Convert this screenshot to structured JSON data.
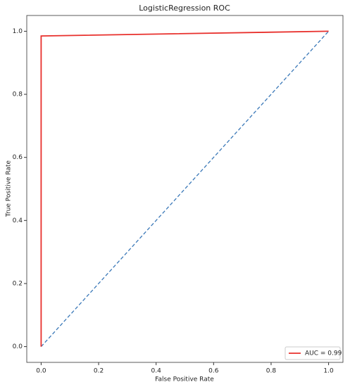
{
  "chart_data": {
    "type": "line",
    "title": "LogisticRegression ROC",
    "xlabel": "False Positive Rate",
    "ylabel": "True Positive Rate",
    "series": [
      {
        "name": "AUC = 0.99",
        "color": "#e8302c",
        "x": [
          0,
          0,
          1
        ],
        "values": [
          0,
          0.985,
          1
        ]
      },
      {
        "color": "#3a78b8",
        "dashed": true,
        "x": [
          0,
          1
        ],
        "values": [
          0,
          1
        ]
      }
    ],
    "xlim": [
      -0.05,
      1.05
    ],
    "ylim": [
      -0.05,
      1.05
    ],
    "xticks": [
      {
        "value": 0,
        "label": "0.0"
      },
      0.2,
      0.4,
      0.6,
      0.8,
      {
        "value": 1,
        "label": "1.0"
      }
    ],
    "yticks": [
      {
        "value": 0,
        "label": "0.0"
      },
      0.2,
      0.4,
      0.6,
      0.8,
      {
        "value": 1,
        "label": "1.0"
      }
    ],
    "legend": "lower right"
  }
}
